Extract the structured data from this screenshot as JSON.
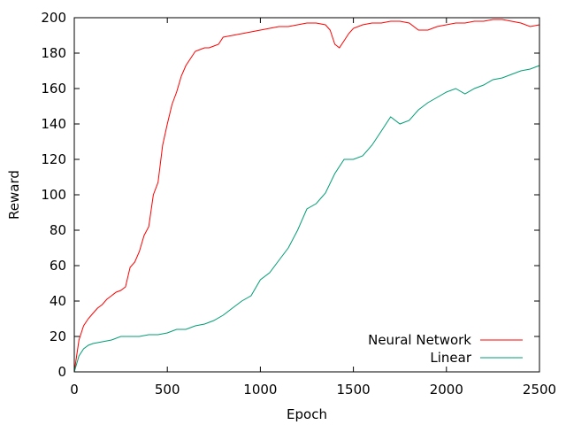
{
  "chart_data": {
    "type": "line",
    "title": "",
    "xlabel": "Epoch",
    "ylabel": "Reward",
    "xlim": [
      0,
      2500
    ],
    "ylim": [
      0,
      200
    ],
    "xticks": [
      0,
      500,
      1000,
      1500,
      2000,
      2500
    ],
    "yticks": [
      0,
      20,
      40,
      60,
      80,
      100,
      120,
      140,
      160,
      180,
      200
    ],
    "grid": false,
    "legend_position": "bottom-right",
    "series": [
      {
        "name": "Neural Network",
        "color": "#ff0000",
        "x": [
          0,
          25,
          50,
          75,
          100,
          125,
          150,
          175,
          200,
          225,
          250,
          275,
          300,
          325,
          350,
          375,
          400,
          425,
          450,
          475,
          500,
          525,
          550,
          575,
          600,
          625,
          650,
          675,
          700,
          725,
          750,
          775,
          800,
          850,
          900,
          950,
          1000,
          1050,
          1100,
          1150,
          1200,
          1250,
          1300,
          1350,
          1375,
          1400,
          1425,
          1450,
          1475,
          1500,
          1550,
          1600,
          1650,
          1700,
          1750,
          1800,
          1850,
          1900,
          1950,
          2000,
          2050,
          2100,
          2150,
          2200,
          2250,
          2300,
          2350,
          2400,
          2450,
          2500
        ],
        "y": [
          0,
          18,
          26,
          30,
          33,
          36,
          38,
          41,
          43,
          45,
          46,
          48,
          59,
          62,
          68,
          77,
          82,
          100,
          107,
          128,
          140,
          151,
          158,
          167,
          173,
          177,
          181,
          182,
          183,
          183,
          184,
          185,
          189,
          190,
          191,
          192,
          193,
          194,
          195,
          195,
          196,
          197,
          197,
          196,
          193,
          185,
          183,
          187,
          191,
          194,
          196,
          197,
          197,
          198,
          198,
          197,
          193,
          193,
          195,
          196,
          197,
          197,
          198,
          198,
          199,
          199,
          198,
          197,
          195,
          196
        ]
      },
      {
        "name": "Linear",
        "color": "#009e73",
        "x": [
          0,
          25,
          50,
          75,
          100,
          150,
          200,
          250,
          300,
          350,
          400,
          450,
          500,
          550,
          600,
          650,
          700,
          750,
          800,
          850,
          900,
          950,
          1000,
          1050,
          1100,
          1150,
          1200,
          1250,
          1300,
          1350,
          1400,
          1450,
          1500,
          1550,
          1600,
          1650,
          1700,
          1750,
          1800,
          1850,
          1900,
          1950,
          2000,
          2050,
          2100,
          2150,
          2200,
          2250,
          2300,
          2350,
          2400,
          2450,
          2500
        ],
        "y": [
          0,
          9,
          13,
          15,
          16,
          17,
          18,
          20,
          20,
          20,
          21,
          21,
          22,
          24,
          24,
          26,
          27,
          29,
          32,
          36,
          40,
          43,
          52,
          56,
          63,
          70,
          80,
          92,
          95,
          101,
          112,
          120,
          120,
          122,
          128,
          136,
          144,
          140,
          142,
          148,
          152,
          155,
          158,
          160,
          157,
          160,
          162,
          165,
          166,
          168,
          170,
          171,
          173
        ]
      }
    ]
  }
}
